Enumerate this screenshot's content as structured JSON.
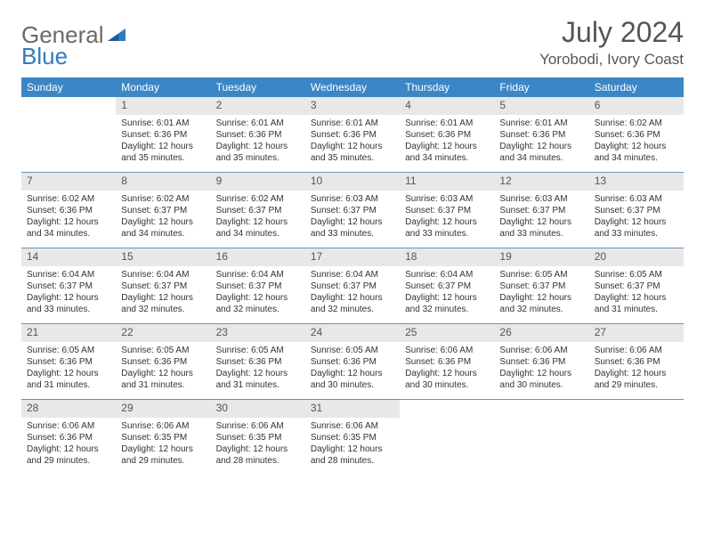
{
  "brand": {
    "part1": "General",
    "part2": "Blue"
  },
  "title": "July 2024",
  "location": "Yorobodi, Ivory Coast",
  "colors": {
    "header_bg": "#3b86c6",
    "header_text": "#ffffff",
    "daynum_bg": "#e8e8e8",
    "week_border": "#6a94b8",
    "text": "#333333",
    "logo_gray": "#6a6a6a",
    "logo_blue": "#2f7bbf"
  },
  "daysOfWeek": [
    "Sunday",
    "Monday",
    "Tuesday",
    "Wednesday",
    "Thursday",
    "Friday",
    "Saturday"
  ],
  "weeks": [
    [
      {
        "n": "",
        "sunrise": "",
        "sunset": "",
        "daylight": ""
      },
      {
        "n": "1",
        "sunrise": "Sunrise: 6:01 AM",
        "sunset": "Sunset: 6:36 PM",
        "daylight": "Daylight: 12 hours and 35 minutes."
      },
      {
        "n": "2",
        "sunrise": "Sunrise: 6:01 AM",
        "sunset": "Sunset: 6:36 PM",
        "daylight": "Daylight: 12 hours and 35 minutes."
      },
      {
        "n": "3",
        "sunrise": "Sunrise: 6:01 AM",
        "sunset": "Sunset: 6:36 PM",
        "daylight": "Daylight: 12 hours and 35 minutes."
      },
      {
        "n": "4",
        "sunrise": "Sunrise: 6:01 AM",
        "sunset": "Sunset: 6:36 PM",
        "daylight": "Daylight: 12 hours and 34 minutes."
      },
      {
        "n": "5",
        "sunrise": "Sunrise: 6:01 AM",
        "sunset": "Sunset: 6:36 PM",
        "daylight": "Daylight: 12 hours and 34 minutes."
      },
      {
        "n": "6",
        "sunrise": "Sunrise: 6:02 AM",
        "sunset": "Sunset: 6:36 PM",
        "daylight": "Daylight: 12 hours and 34 minutes."
      }
    ],
    [
      {
        "n": "7",
        "sunrise": "Sunrise: 6:02 AM",
        "sunset": "Sunset: 6:36 PM",
        "daylight": "Daylight: 12 hours and 34 minutes."
      },
      {
        "n": "8",
        "sunrise": "Sunrise: 6:02 AM",
        "sunset": "Sunset: 6:37 PM",
        "daylight": "Daylight: 12 hours and 34 minutes."
      },
      {
        "n": "9",
        "sunrise": "Sunrise: 6:02 AM",
        "sunset": "Sunset: 6:37 PM",
        "daylight": "Daylight: 12 hours and 34 minutes."
      },
      {
        "n": "10",
        "sunrise": "Sunrise: 6:03 AM",
        "sunset": "Sunset: 6:37 PM",
        "daylight": "Daylight: 12 hours and 33 minutes."
      },
      {
        "n": "11",
        "sunrise": "Sunrise: 6:03 AM",
        "sunset": "Sunset: 6:37 PM",
        "daylight": "Daylight: 12 hours and 33 minutes."
      },
      {
        "n": "12",
        "sunrise": "Sunrise: 6:03 AM",
        "sunset": "Sunset: 6:37 PM",
        "daylight": "Daylight: 12 hours and 33 minutes."
      },
      {
        "n": "13",
        "sunrise": "Sunrise: 6:03 AM",
        "sunset": "Sunset: 6:37 PM",
        "daylight": "Daylight: 12 hours and 33 minutes."
      }
    ],
    [
      {
        "n": "14",
        "sunrise": "Sunrise: 6:04 AM",
        "sunset": "Sunset: 6:37 PM",
        "daylight": "Daylight: 12 hours and 33 minutes."
      },
      {
        "n": "15",
        "sunrise": "Sunrise: 6:04 AM",
        "sunset": "Sunset: 6:37 PM",
        "daylight": "Daylight: 12 hours and 32 minutes."
      },
      {
        "n": "16",
        "sunrise": "Sunrise: 6:04 AM",
        "sunset": "Sunset: 6:37 PM",
        "daylight": "Daylight: 12 hours and 32 minutes."
      },
      {
        "n": "17",
        "sunrise": "Sunrise: 6:04 AM",
        "sunset": "Sunset: 6:37 PM",
        "daylight": "Daylight: 12 hours and 32 minutes."
      },
      {
        "n": "18",
        "sunrise": "Sunrise: 6:04 AM",
        "sunset": "Sunset: 6:37 PM",
        "daylight": "Daylight: 12 hours and 32 minutes."
      },
      {
        "n": "19",
        "sunrise": "Sunrise: 6:05 AM",
        "sunset": "Sunset: 6:37 PM",
        "daylight": "Daylight: 12 hours and 32 minutes."
      },
      {
        "n": "20",
        "sunrise": "Sunrise: 6:05 AM",
        "sunset": "Sunset: 6:37 PM",
        "daylight": "Daylight: 12 hours and 31 minutes."
      }
    ],
    [
      {
        "n": "21",
        "sunrise": "Sunrise: 6:05 AM",
        "sunset": "Sunset: 6:36 PM",
        "daylight": "Daylight: 12 hours and 31 minutes."
      },
      {
        "n": "22",
        "sunrise": "Sunrise: 6:05 AM",
        "sunset": "Sunset: 6:36 PM",
        "daylight": "Daylight: 12 hours and 31 minutes."
      },
      {
        "n": "23",
        "sunrise": "Sunrise: 6:05 AM",
        "sunset": "Sunset: 6:36 PM",
        "daylight": "Daylight: 12 hours and 31 minutes."
      },
      {
        "n": "24",
        "sunrise": "Sunrise: 6:05 AM",
        "sunset": "Sunset: 6:36 PM",
        "daylight": "Daylight: 12 hours and 30 minutes."
      },
      {
        "n": "25",
        "sunrise": "Sunrise: 6:06 AM",
        "sunset": "Sunset: 6:36 PM",
        "daylight": "Daylight: 12 hours and 30 minutes."
      },
      {
        "n": "26",
        "sunrise": "Sunrise: 6:06 AM",
        "sunset": "Sunset: 6:36 PM",
        "daylight": "Daylight: 12 hours and 30 minutes."
      },
      {
        "n": "27",
        "sunrise": "Sunrise: 6:06 AM",
        "sunset": "Sunset: 6:36 PM",
        "daylight": "Daylight: 12 hours and 29 minutes."
      }
    ],
    [
      {
        "n": "28",
        "sunrise": "Sunrise: 6:06 AM",
        "sunset": "Sunset: 6:36 PM",
        "daylight": "Daylight: 12 hours and 29 minutes."
      },
      {
        "n": "29",
        "sunrise": "Sunrise: 6:06 AM",
        "sunset": "Sunset: 6:35 PM",
        "daylight": "Daylight: 12 hours and 29 minutes."
      },
      {
        "n": "30",
        "sunrise": "Sunrise: 6:06 AM",
        "sunset": "Sunset: 6:35 PM",
        "daylight": "Daylight: 12 hours and 28 minutes."
      },
      {
        "n": "31",
        "sunrise": "Sunrise: 6:06 AM",
        "sunset": "Sunset: 6:35 PM",
        "daylight": "Daylight: 12 hours and 28 minutes."
      },
      {
        "n": "",
        "sunrise": "",
        "sunset": "",
        "daylight": ""
      },
      {
        "n": "",
        "sunrise": "",
        "sunset": "",
        "daylight": ""
      },
      {
        "n": "",
        "sunrise": "",
        "sunset": "",
        "daylight": ""
      }
    ]
  ]
}
